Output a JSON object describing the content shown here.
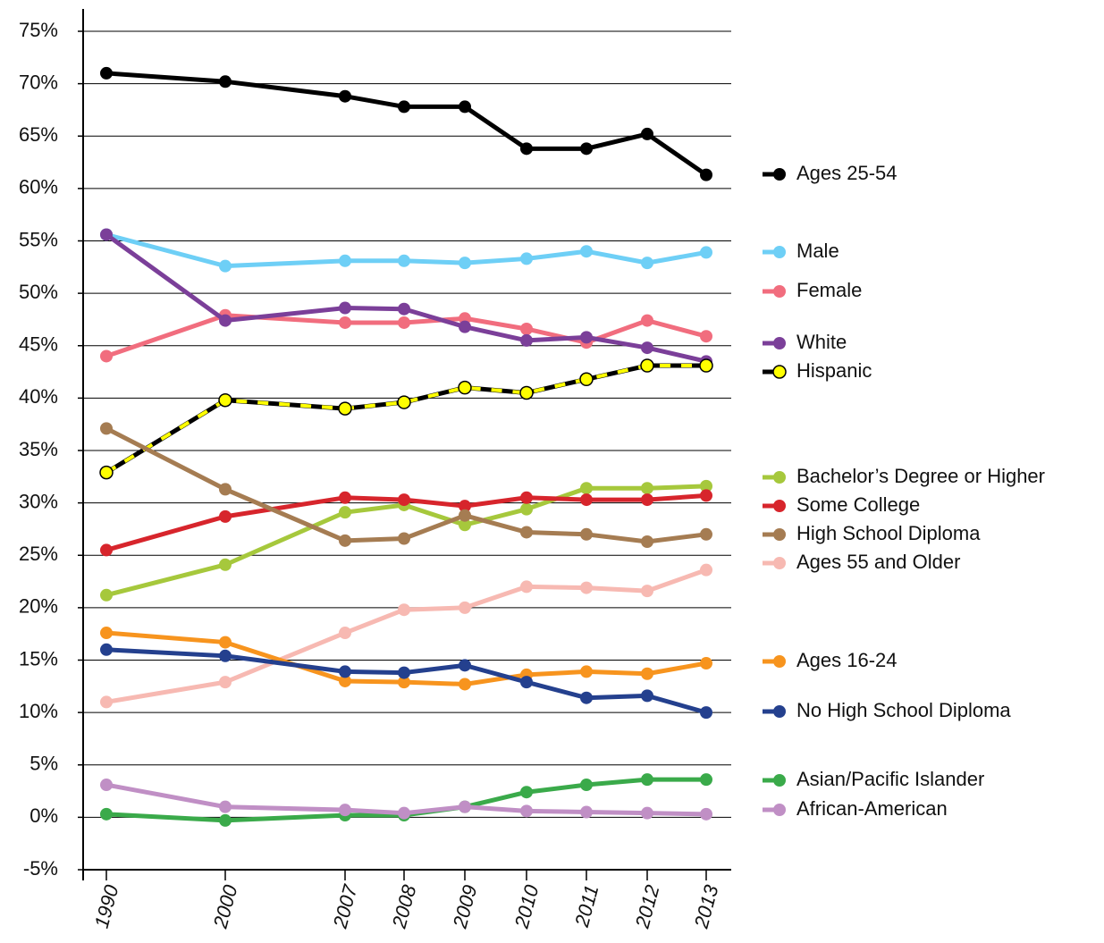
{
  "chart_data": {
    "type": "line",
    "categories": [
      "1990",
      "2000",
      "2007",
      "2008",
      "2009",
      "2010",
      "2011",
      "2012",
      "2013"
    ],
    "ylim": [
      -5,
      75
    ],
    "yticks": [
      {
        "value": -5,
        "label": "-5%"
      },
      {
        "value": 0,
        "label": "0%"
      },
      {
        "value": 5,
        "label": "5%"
      },
      {
        "value": 10,
        "label": "10%"
      },
      {
        "value": 15,
        "label": "15%"
      },
      {
        "value": 20,
        "label": "20%"
      },
      {
        "value": 25,
        "label": "25%"
      },
      {
        "value": 30,
        "label": "30%"
      },
      {
        "value": 35,
        "label": "35%"
      },
      {
        "value": 40,
        "label": "40%"
      },
      {
        "value": 45,
        "label": "45%"
      },
      {
        "value": 50,
        "label": "50%"
      },
      {
        "value": 55,
        "label": "55%"
      },
      {
        "value": 60,
        "label": "60%"
      },
      {
        "value": 65,
        "label": "65%"
      },
      {
        "value": 70,
        "label": "70%"
      },
      {
        "value": 75,
        "label": "75%"
      }
    ],
    "grid": true,
    "series": [
      {
        "name": "Ages 25-54",
        "color": "#000000",
        "values": [
          71,
          70.2,
          68.8,
          67.8,
          67.8,
          63.8,
          63.8,
          65.2,
          61.3
        ]
      },
      {
        "name": "Male",
        "color": "#6ecff6",
        "values": [
          55.6,
          52.6,
          53.1,
          53.1,
          52.9,
          53.3,
          54.0,
          52.9,
          53.9
        ]
      },
      {
        "name": "Female",
        "color": "#f16d7e",
        "values": [
          44.0,
          47.9,
          47.2,
          47.2,
          47.6,
          46.6,
          45.3,
          47.4,
          45.9
        ]
      },
      {
        "name": "White",
        "color": "#7b3f99",
        "values": [
          55.6,
          47.4,
          48.6,
          48.5,
          46.8,
          45.5,
          45.8,
          44.8,
          43.5
        ]
      },
      {
        "name": "Hispanic",
        "color": "#000000",
        "dash_color": "#ffff00",
        "values": [
          32.9,
          39.8,
          39.0,
          39.6,
          41.0,
          40.5,
          41.8,
          43.1,
          43.1
        ]
      },
      {
        "name": "Bachelor’s Degree or Higher",
        "color": "#a6c83c",
        "values": [
          21.2,
          24.1,
          29.1,
          29.8,
          27.9,
          29.4,
          31.4,
          31.4,
          31.6
        ]
      },
      {
        "name": "Some College",
        "color": "#d7252c",
        "values": [
          25.5,
          28.7,
          30.5,
          30.3,
          29.7,
          30.5,
          30.3,
          30.3,
          30.7
        ]
      },
      {
        "name": "High School Diploma",
        "color": "#a57c52",
        "values": [
          37.1,
          31.3,
          26.4,
          26.6,
          28.8,
          27.2,
          27.0,
          26.3,
          27.0
        ]
      },
      {
        "name": "Ages 55 and Older",
        "color": "#f7b9b2",
        "values": [
          11.0,
          12.9,
          17.6,
          19.8,
          20.0,
          22.0,
          21.9,
          21.6,
          23.6
        ]
      },
      {
        "name": "Ages 16-24",
        "color": "#f7941e",
        "values": [
          17.6,
          16.7,
          13.0,
          12.9,
          12.7,
          13.6,
          13.9,
          13.7,
          14.7
        ]
      },
      {
        "name": "No High School Diploma",
        "color": "#24408e",
        "values": [
          16.0,
          15.4,
          13.9,
          13.8,
          14.5,
          12.9,
          11.4,
          11.6,
          10.0
        ]
      },
      {
        "name": "Asian/Pacific Islander",
        "color": "#3aaa4a",
        "values": [
          0.3,
          -0.3,
          0.2,
          0.2,
          1.0,
          2.4,
          3.1,
          3.6,
          3.6
        ]
      },
      {
        "name": "African-American",
        "color": "#c08fc5",
        "values": [
          3.1,
          1.0,
          0.7,
          0.4,
          1.0,
          0.6,
          0.5,
          0.4,
          0.3
        ]
      }
    ]
  }
}
